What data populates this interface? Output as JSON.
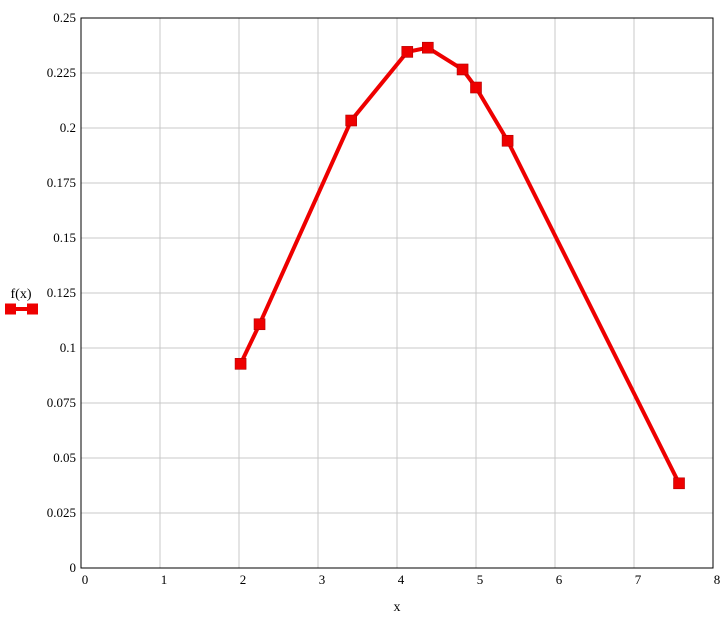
{
  "chart_data": {
    "type": "line",
    "xlabel": "x",
    "ylabel": "",
    "legend": {
      "label": "f(x)",
      "placement": "left"
    },
    "xlim": [
      0,
      8
    ],
    "ylim": [
      0,
      0.25
    ],
    "x_ticks": [
      0,
      1,
      2,
      3,
      4,
      5,
      6,
      7,
      8
    ],
    "x_tick_labels": [
      "0",
      "1",
      "2",
      "3",
      "4",
      "5",
      "6",
      "7",
      "8"
    ],
    "y_ticks": [
      0,
      0.025,
      0.05,
      0.075,
      0.1,
      0.125,
      0.15,
      0.175,
      0.2,
      0.225,
      0.25
    ],
    "y_tick_labels": [
      "0",
      "0.025",
      "0.05",
      "0.075",
      "0.1",
      "0.125",
      "0.15",
      "0.175",
      "0.2",
      "0.225",
      "0.25"
    ],
    "grid": true,
    "series": [
      {
        "name": "f(x)",
        "color": "#ee0000",
        "marker": "square",
        "points": [
          {
            "x": 2.02,
            "y": 0.0928
          },
          {
            "x": 2.26,
            "y": 0.1108
          },
          {
            "x": 3.42,
            "y": 0.2034
          },
          {
            "x": 4.13,
            "y": 0.2346
          },
          {
            "x": 4.39,
            "y": 0.2365
          },
          {
            "x": 4.83,
            "y": 0.2266
          },
          {
            "x": 5.0,
            "y": 0.2184
          },
          {
            "x": 5.4,
            "y": 0.1942
          },
          {
            "x": 7.57,
            "y": 0.0385
          }
        ]
      }
    ]
  }
}
